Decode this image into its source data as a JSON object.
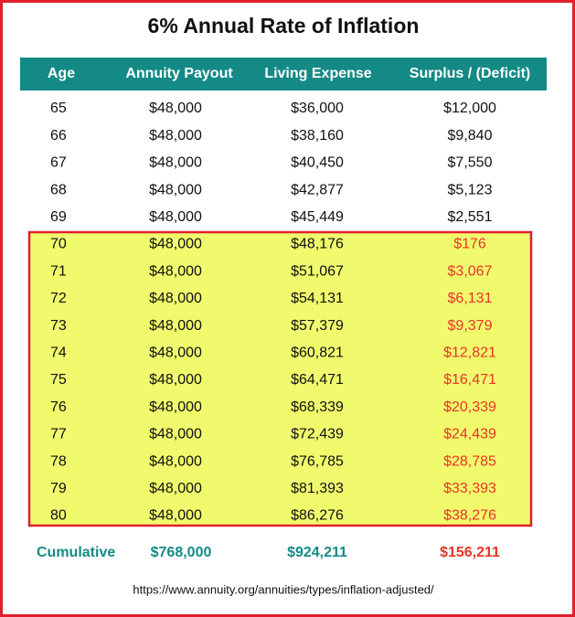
{
  "title": "6% Annual Rate of Inflation",
  "table": {
    "headers": [
      "Age",
      "Annuity Payout",
      "Living Expense",
      "Surplus / (Deficit)"
    ],
    "rows": [
      [
        "65",
        "$48,000",
        "$36,000",
        "$12,000"
      ],
      [
        "66",
        "$48,000",
        "$38,160",
        "$9,840"
      ],
      [
        "67",
        "$48,000",
        "$40,450",
        "$7,550"
      ],
      [
        "68",
        "$48,000",
        "$42,877",
        "$5,123"
      ],
      [
        "69",
        "$48,000",
        "$45,449",
        "$2,551"
      ],
      [
        "70",
        "$48,000",
        "$48,176",
        "$176"
      ],
      [
        "71",
        "$48,000",
        "$51,067",
        "$3,067"
      ],
      [
        "72",
        "$48,000",
        "$54,131",
        "$6,131"
      ],
      [
        "73",
        "$48,000",
        "$57,379",
        "$9,379"
      ],
      [
        "74",
        "$48,000",
        "$60,821",
        "$12,821"
      ],
      [
        "75",
        "$48,000",
        "$64,471",
        "$16,471"
      ],
      [
        "76",
        "$48,000",
        "$68,339",
        "$20,339"
      ],
      [
        "77",
        "$48,000",
        "$72,439",
        "$24,439"
      ],
      [
        "78",
        "$48,000",
        "$76,785",
        "$28,785"
      ],
      [
        "79",
        "$48,000",
        "$81,393",
        "$33,393"
      ],
      [
        "80",
        "$48,000",
        "$86,276",
        "$38,276"
      ]
    ],
    "footer": [
      "Cumulative",
      "$768,000",
      "$924,211",
      "$156,211"
    ]
  },
  "source": "https://www.annuity.org/annuities/types/inflation-adjusted/"
}
